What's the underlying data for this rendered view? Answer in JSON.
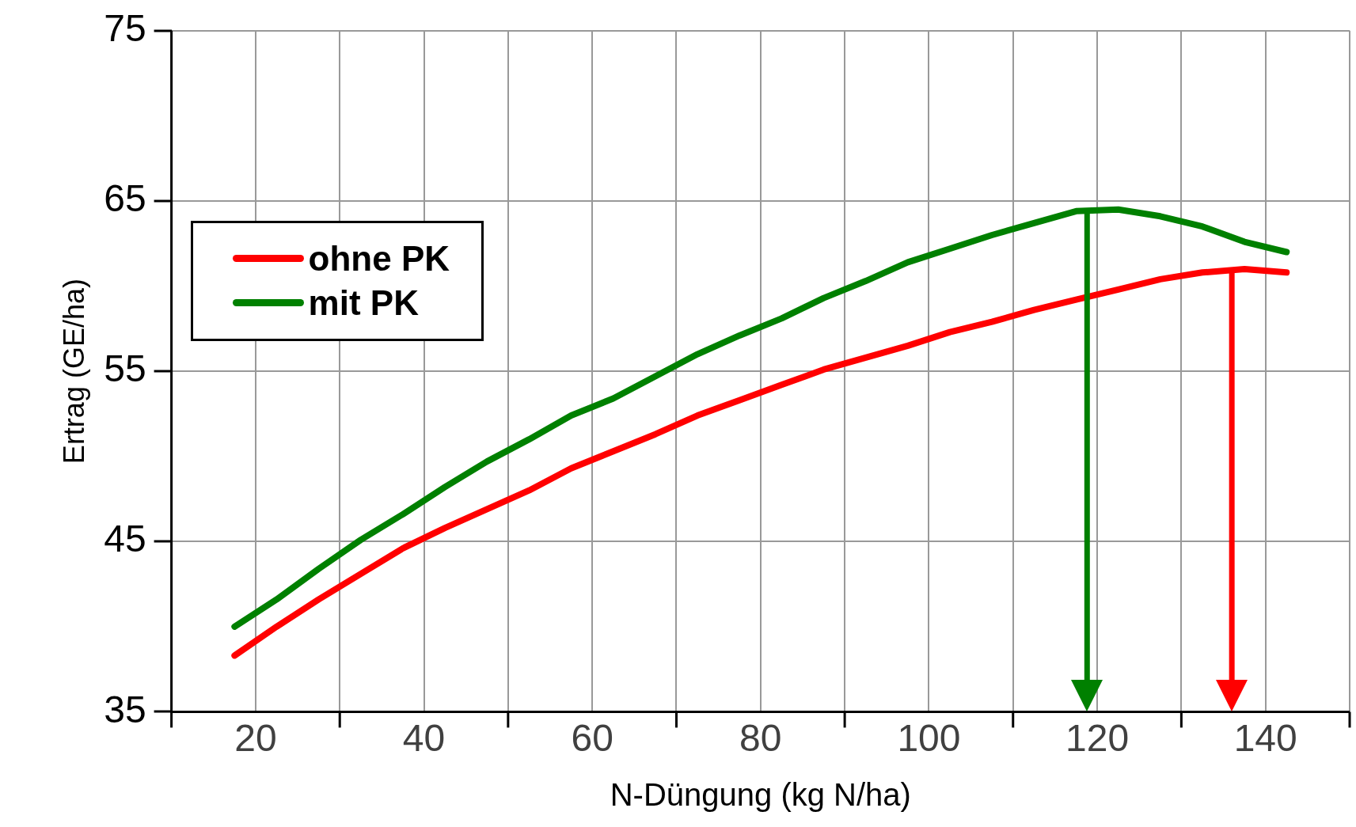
{
  "chart_data": {
    "type": "line",
    "xlabel": "N-Düngung (kg N/ha)",
    "ylabel": "Ertrag (GE/ha)",
    "xlim": [
      10,
      150
    ],
    "xticks": [
      {
        "value": 10,
        "label": null
      },
      20,
      {
        "value": 30,
        "label": null
      },
      40,
      {
        "value": 50,
        "label": null
      },
      60,
      {
        "value": 70,
        "label": null
      },
      80,
      {
        "value": 90,
        "label": null
      },
      100,
      {
        "value": 110,
        "label": null
      },
      120,
      {
        "value": 130,
        "label": null
      },
      140,
      {
        "value": 150,
        "label": null
      }
    ],
    "ylim": [
      35,
      75
    ],
    "yticks": [
      35,
      45,
      55,
      65,
      75
    ],
    "x": [
      17.5,
      22.5,
      27.5,
      32.5,
      37.5,
      42.5,
      47.5,
      52.5,
      57.5,
      62.5,
      67.5,
      72.5,
      77.5,
      82.5,
      87.5,
      92.5,
      97.5,
      102.5,
      107.5,
      112.5,
      117.5,
      122.5,
      127.5,
      132.5,
      137.5,
      142.5
    ],
    "series": [
      {
        "name": "ohne PK",
        "color": "#ff0000",
        "values": [
          38.3,
          40.0,
          41.6,
          43.1,
          44.6,
          45.8,
          46.9,
          48.0,
          49.3,
          50.3,
          51.3,
          52.4,
          53.3,
          54.2,
          55.1,
          55.8,
          56.5,
          57.3,
          57.9,
          58.6,
          59.2,
          59.8,
          60.4,
          60.8,
          61.0,
          60.8
        ]
      },
      {
        "name": "mit PK",
        "color": "#008000",
        "values": [
          40.0,
          41.6,
          43.4,
          45.1,
          46.6,
          48.2,
          49.7,
          51.0,
          52.4,
          53.4,
          54.7,
          56.0,
          57.1,
          58.1,
          59.3,
          60.3,
          61.4,
          62.2,
          63.0,
          63.7,
          64.4,
          64.5,
          64.1,
          63.5,
          62.6,
          62.0
        ]
      }
    ],
    "ref_lines": [
      {
        "axis": "x",
        "value": 118.8,
        "color": "#008000"
      },
      {
        "axis": "x",
        "value": 136,
        "color": "#ff0000"
      }
    ],
    "grid": true,
    "legend": "top left",
    "marker": "none",
    "line_style": "solid"
  }
}
